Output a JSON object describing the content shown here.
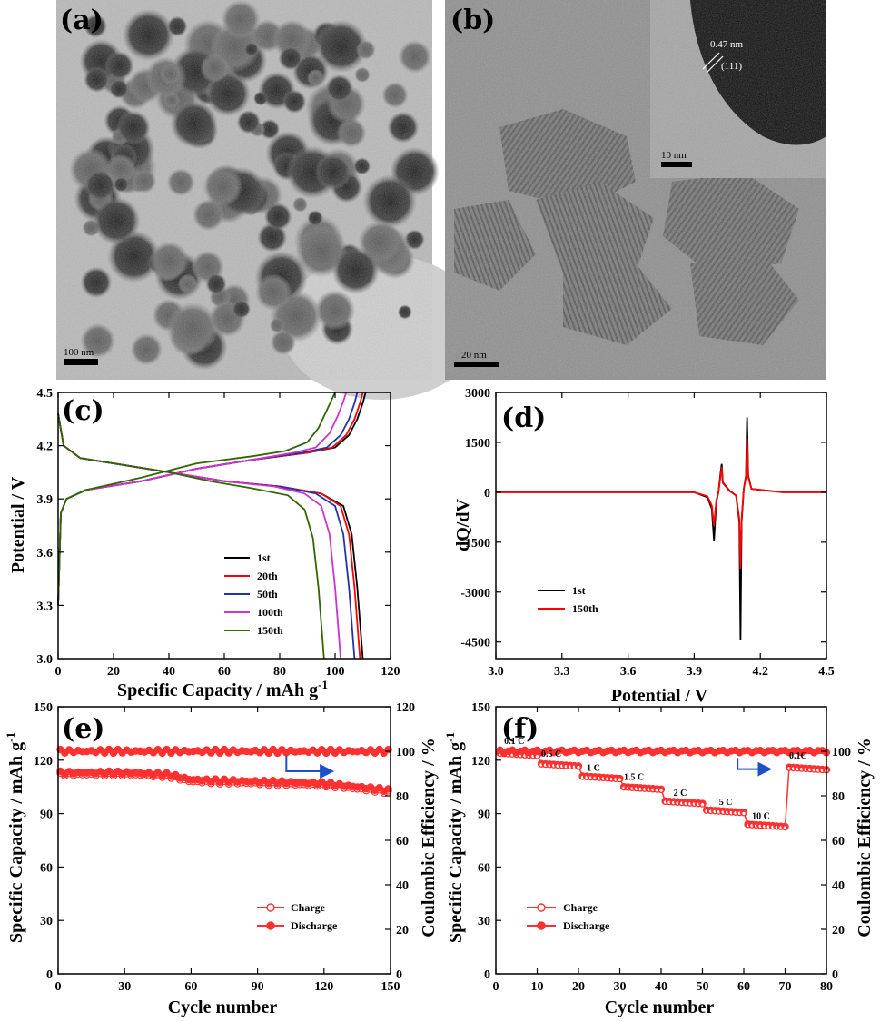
{
  "panels": {
    "a": {
      "label": "(a)",
      "scale_bar": "100 nm"
    },
    "b": {
      "label": "(b)",
      "scale_bar": "20 nm",
      "inset_scale_bar": "10 nm",
      "inset_spacing": "0.47 nm",
      "inset_plane": "(111)"
    }
  },
  "colors": {
    "black": "#000000",
    "red": "#ff0000",
    "blue": "#2233aa",
    "magenta": "#cc33cc",
    "olive": "#336600",
    "arrow": "#1f4fc9",
    "marker_red": "#ff3030"
  },
  "chart_data": [
    {
      "panel": "(c)",
      "type": "line",
      "xlabel": "Specific Capacity / mAh g",
      "xlabel_sup": "-1",
      "ylabel": "Potential / V",
      "xlim": [
        0,
        120
      ],
      "ylim": [
        3.0,
        4.5
      ],
      "xticks": [
        "0",
        "20",
        "40",
        "60",
        "80",
        "100",
        "120"
      ],
      "yticks": [
        "3.0",
        "3.3",
        "3.6",
        "3.9",
        "4.2",
        "4.5"
      ],
      "xtick_values": [
        0,
        20,
        40,
        60,
        80,
        100,
        120
      ],
      "ytick_values": [
        3.0,
        3.3,
        3.6,
        3.9,
        4.2,
        4.5
      ],
      "legend_position": "lower-right",
      "series": [
        {
          "name": "1st",
          "color": "#000000",
          "charge": [
            [
              0,
              3.3
            ],
            [
              1,
              3.82
            ],
            [
              3,
              3.9
            ],
            [
              10,
              3.95
            ],
            [
              30,
              4.0
            ],
            [
              50,
              4.07
            ],
            [
              70,
              4.12
            ],
            [
              90,
              4.16
            ],
            [
              100,
              4.19
            ],
            [
              105,
              4.26
            ],
            [
              108,
              4.35
            ],
            [
              110,
              4.44
            ],
            [
              111,
              4.5
            ]
          ],
          "discharge": [
            [
              0,
              4.38
            ],
            [
              2,
              4.2
            ],
            [
              8,
              4.13
            ],
            [
              20,
              4.1
            ],
            [
              40,
              4.05
            ],
            [
              60,
              4.0
            ],
            [
              80,
              3.97
            ],
            [
              95,
              3.93
            ],
            [
              103,
              3.86
            ],
            [
              106,
              3.7
            ],
            [
              108,
              3.4
            ],
            [
              110,
              3.0
            ]
          ]
        },
        {
          "name": "20th",
          "color": "#ff0000",
          "charge": [
            [
              0,
              3.3
            ],
            [
              1,
              3.82
            ],
            [
              3,
              3.9
            ],
            [
              10,
              3.95
            ],
            [
              30,
              4.0
            ],
            [
              50,
              4.07
            ],
            [
              70,
              4.12
            ],
            [
              90,
              4.16
            ],
            [
              99,
              4.19
            ],
            [
              104,
              4.26
            ],
            [
              107,
              4.35
            ],
            [
              109,
              4.44
            ],
            [
              110,
              4.5
            ]
          ],
          "discharge": [
            [
              0,
              4.38
            ],
            [
              2,
              4.2
            ],
            [
              8,
              4.13
            ],
            [
              20,
              4.1
            ],
            [
              40,
              4.05
            ],
            [
              60,
              4.0
            ],
            [
              80,
              3.97
            ],
            [
              95,
              3.93
            ],
            [
              102,
              3.86
            ],
            [
              105,
              3.7
            ],
            [
              107,
              3.4
            ],
            [
              109,
              3.0
            ]
          ]
        },
        {
          "name": "50th",
          "color": "#2233aa",
          "charge": [
            [
              0,
              3.3
            ],
            [
              1,
              3.82
            ],
            [
              3,
              3.9
            ],
            [
              10,
              3.95
            ],
            [
              30,
              4.0
            ],
            [
              50,
              4.07
            ],
            [
              70,
              4.12
            ],
            [
              88,
              4.16
            ],
            [
              97,
              4.19
            ],
            [
              102,
              4.26
            ],
            [
              105,
              4.35
            ],
            [
              107,
              4.44
            ],
            [
              108,
              4.5
            ]
          ],
          "discharge": [
            [
              0,
              4.38
            ],
            [
              2,
              4.2
            ],
            [
              8,
              4.13
            ],
            [
              20,
              4.1
            ],
            [
              40,
              4.05
            ],
            [
              60,
              4.0
            ],
            [
              80,
              3.97
            ],
            [
              93,
              3.93
            ],
            [
              100,
              3.86
            ],
            [
              103,
              3.7
            ],
            [
              105,
              3.4
            ],
            [
              107,
              3.0
            ]
          ]
        },
        {
          "name": "100th",
          "color": "#cc33cc",
          "charge": [
            [
              0,
              3.3
            ],
            [
              1,
              3.82
            ],
            [
              3,
              3.9
            ],
            [
              10,
              3.95
            ],
            [
              30,
              4.0
            ],
            [
              50,
              4.07
            ],
            [
              70,
              4.12
            ],
            [
              85,
              4.16
            ],
            [
              93,
              4.19
            ],
            [
              98,
              4.27
            ],
            [
              101,
              4.37
            ],
            [
              103,
              4.45
            ],
            [
              104,
              4.5
            ]
          ],
          "discharge": [
            [
              0,
              4.38
            ],
            [
              2,
              4.2
            ],
            [
              8,
              4.13
            ],
            [
              20,
              4.1
            ],
            [
              40,
              4.05
            ],
            [
              60,
              4.0
            ],
            [
              78,
              3.97
            ],
            [
              89,
              3.93
            ],
            [
              95,
              3.86
            ],
            [
              98,
              3.7
            ],
            [
              100,
              3.4
            ],
            [
              102,
              3.0
            ]
          ]
        },
        {
          "name": "150th",
          "color": "#336600",
          "charge": [
            [
              0,
              3.3
            ],
            [
              1,
              3.82
            ],
            [
              3,
              3.9
            ],
            [
              10,
              3.95
            ],
            [
              30,
              4.02
            ],
            [
              50,
              4.1
            ],
            [
              70,
              4.14
            ],
            [
              82,
              4.17
            ],
            [
              90,
              4.22
            ],
            [
              94,
              4.3
            ],
            [
              97,
              4.4
            ],
            [
              100,
              4.5
            ]
          ],
          "discharge": [
            [
              0,
              4.38
            ],
            [
              2,
              4.2
            ],
            [
              8,
              4.13
            ],
            [
              20,
              4.1
            ],
            [
              40,
              4.05
            ],
            [
              55,
              4.0
            ],
            [
              70,
              3.96
            ],
            [
              83,
              3.92
            ],
            [
              89,
              3.84
            ],
            [
              92,
              3.68
            ],
            [
              94,
              3.4
            ],
            [
              96,
              3.0
            ]
          ]
        }
      ]
    },
    {
      "panel": "(d)",
      "type": "line",
      "xlabel": "Potential / V",
      "ylabel": "dQ/dV",
      "xlim": [
        3.0,
        4.5
      ],
      "ylim": [
        -5000,
        3000
      ],
      "xticks": [
        "3.0",
        "3.3",
        "3.6",
        "3.9",
        "4.2",
        "4.5"
      ],
      "yticks": [
        "-4500",
        "-3000",
        "-1500",
        "0",
        "1500",
        "3000"
      ],
      "xtick_values": [
        3.0,
        3.3,
        3.6,
        3.9,
        4.2,
        4.5
      ],
      "ytick_values": [
        -4500,
        -3000,
        -1500,
        0,
        1500,
        3000
      ],
      "legend_position": "lower-left",
      "series": [
        {
          "name": "1st",
          "color": "#000000",
          "points": [
            [
              3.0,
              0
            ],
            [
              3.9,
              0
            ],
            [
              3.96,
              -150
            ],
            [
              3.98,
              -500
            ],
            [
              3.99,
              -1450
            ],
            [
              4.0,
              -300
            ],
            [
              4.01,
              0
            ],
            [
              4.02,
              600
            ],
            [
              4.025,
              850
            ],
            [
              4.03,
              300
            ],
            [
              4.06,
              50
            ],
            [
              4.09,
              -100
            ],
            [
              4.105,
              -900
            ],
            [
              4.11,
              -4450
            ],
            [
              4.115,
              -900
            ],
            [
              4.125,
              100
            ],
            [
              4.135,
              500
            ],
            [
              4.14,
              2250
            ],
            [
              4.145,
              500
            ],
            [
              4.16,
              100
            ],
            [
              4.3,
              0
            ],
            [
              4.5,
              0
            ]
          ]
        },
        {
          "name": "150th",
          "color": "#ff0000",
          "points": [
            [
              3.0,
              0
            ],
            [
              3.9,
              0
            ],
            [
              3.96,
              -120
            ],
            [
              3.98,
              -400
            ],
            [
              3.99,
              -1000
            ],
            [
              4.0,
              -250
            ],
            [
              4.01,
              0
            ],
            [
              4.02,
              500
            ],
            [
              4.025,
              750
            ],
            [
              4.03,
              280
            ],
            [
              4.06,
              40
            ],
            [
              4.09,
              -100
            ],
            [
              4.105,
              -800
            ],
            [
              4.11,
              -2300
            ],
            [
              4.115,
              -800
            ],
            [
              4.125,
              100
            ],
            [
              4.135,
              450
            ],
            [
              4.14,
              1600
            ],
            [
              4.145,
              450
            ],
            [
              4.16,
              100
            ],
            [
              4.3,
              0
            ],
            [
              4.5,
              0
            ]
          ]
        }
      ]
    },
    {
      "panel": "(e)",
      "type": "scatter",
      "xlabel": "Cycle number",
      "ylabel": "Specific Capacity / mAh g",
      "ylabel_sup": "-1",
      "y2label": "Coulombic Efficiency / %",
      "xlim": [
        0,
        150
      ],
      "ylim": [
        0,
        150
      ],
      "y2lim": [
        0,
        120
      ],
      "xticks": [
        "0",
        "30",
        "60",
        "90",
        "120",
        "150"
      ],
      "yticks": [
        "0",
        "30",
        "60",
        "90",
        "120",
        "150"
      ],
      "y2ticks": [
        "0",
        "20",
        "40",
        "60",
        "80",
        "100",
        "120"
      ],
      "xtick_values": [
        0,
        30,
        60,
        90,
        120,
        150
      ],
      "ytick_values": [
        0,
        30,
        60,
        90,
        120,
        150
      ],
      "y2tick_values": [
        0,
        20,
        40,
        60,
        80,
        100,
        120
      ],
      "legend_position": "lower-right",
      "series": [
        {
          "name": "Charge",
          "marker": "open-circle",
          "color": "#ff3030",
          "x_start": 1,
          "x_end": 150,
          "step": 2,
          "trend": [
            [
              1,
              112
            ],
            [
              30,
              112
            ],
            [
              50,
              111
            ],
            [
              60,
              108
            ],
            [
              90,
              107
            ],
            [
              120,
              106
            ],
            [
              135,
              104
            ],
            [
              150,
              102
            ]
          ]
        },
        {
          "name": "Discharge",
          "marker": "filled-circle",
          "color": "#ff3030",
          "x_start": 1,
          "x_end": 150,
          "step": 2,
          "trend": [
            [
              1,
              113
            ],
            [
              30,
              113
            ],
            [
              50,
              112
            ],
            [
              60,
              109
            ],
            [
              90,
              108
            ],
            [
              120,
              107
            ],
            [
              135,
              105
            ],
            [
              150,
              103
            ]
          ]
        },
        {
          "name": "Coulombic Efficiency",
          "axis": "right",
          "marker": "filled-circle",
          "color": "#ff3030",
          "x_start": 1,
          "x_end": 150,
          "step": 2,
          "trend": [
            [
              1,
              100
            ],
            [
              150,
              100
            ]
          ]
        }
      ],
      "annotations": {
        "arrow_direction": "right"
      }
    },
    {
      "panel": "(f)",
      "type": "scatter",
      "xlabel": "Cycle number",
      "ylabel": "Specific Capacity / mAh g",
      "ylabel_sup": "-1",
      "y2label": "Coulombic Efficiency / %",
      "xlim": [
        0,
        80
      ],
      "ylim": [
        0,
        150
      ],
      "y2lim": [
        0,
        120
      ],
      "xticks": [
        "0",
        "10",
        "20",
        "30",
        "40",
        "50",
        "60",
        "70",
        "80"
      ],
      "yticks": [
        "0",
        "30",
        "60",
        "90",
        "120",
        "150"
      ],
      "y2ticks": [
        "0",
        "20",
        "40",
        "60",
        "80",
        "100"
      ],
      "xtick_values": [
        0,
        10,
        20,
        30,
        40,
        50,
        60,
        70,
        80
      ],
      "ytick_values": [
        0,
        30,
        60,
        90,
        120,
        150
      ],
      "y2tick_values": [
        0,
        20,
        40,
        60,
        80,
        100
      ],
      "legend_position": "lower-left",
      "rate_steps": [
        {
          "label": "0.1 C",
          "x0": 1,
          "x1": 10,
          "value": 124
        },
        {
          "label": "0.5 C",
          "x0": 11,
          "x1": 20,
          "value": 118
        },
        {
          "label": "1 C",
          "x0": 21,
          "x1": 30,
          "value": 111
        },
        {
          "label": "1.5 C",
          "x0": 31,
          "x1": 40,
          "value": 105
        },
        {
          "label": "2 C",
          "x0": 41,
          "x1": 50,
          "value": 97
        },
        {
          "label": "5 C",
          "x0": 51,
          "x1": 60,
          "value": 92
        },
        {
          "label": "10 C",
          "x0": 61,
          "x1": 70,
          "value": 84
        },
        {
          "label": "0.1C",
          "x0": 71,
          "x1": 80,
          "value": 116
        }
      ],
      "series": [
        {
          "name": "Charge",
          "marker": "open-circle",
          "color": "#ff3030"
        },
        {
          "name": "Discharge",
          "marker": "filled-circle",
          "color": "#ff3030"
        },
        {
          "name": "Coulombic Efficiency",
          "axis": "right",
          "marker": "filled-circle",
          "color": "#ff3030",
          "value": 100
        }
      ],
      "annotations": {
        "arrow_direction": "right"
      }
    }
  ]
}
